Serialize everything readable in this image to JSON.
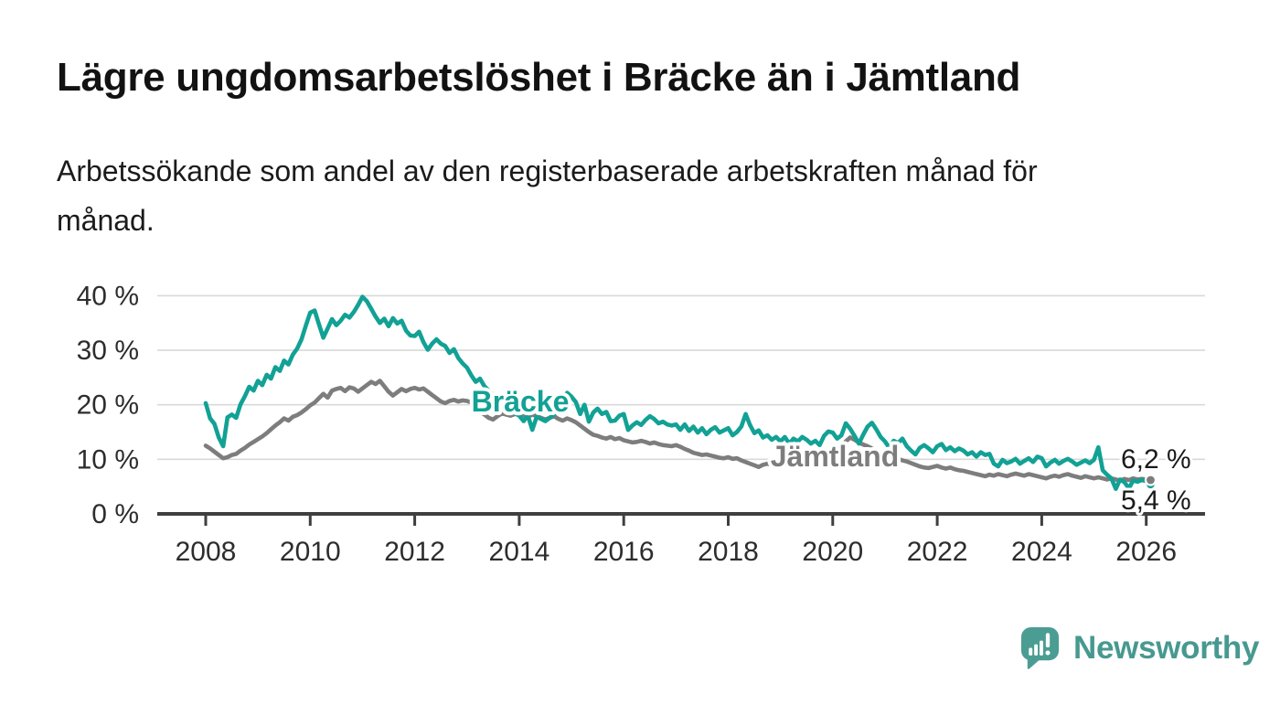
{
  "title": "Lägre ungdomsarbetslöshet i Bräcke än i Jämtland",
  "subtitle_line1": "Arbetssökande som andel av den registerbaserade arbetskraften månad för",
  "subtitle_line2": "månad.",
  "branding": {
    "name": "Newsworthy",
    "icon": "speech-bubble-with-bar-chart",
    "color": "#47998f"
  },
  "chart_data": {
    "type": "line",
    "x_start": "2008-01",
    "x_step": "1 month",
    "x_end": "2026-02",
    "grid": "horizontal",
    "legend": "inline-labels",
    "ylim": [
      0,
      43
    ],
    "x_ticks": [
      {
        "year": 2008,
        "label": "2008"
      },
      {
        "year": 2010,
        "label": "2010"
      },
      {
        "year": 2012,
        "label": "2012"
      },
      {
        "year": 2014,
        "label": "2014"
      },
      {
        "year": 2016,
        "label": "2016"
      },
      {
        "year": 2018,
        "label": "2018"
      },
      {
        "year": 2020,
        "label": "2020"
      },
      {
        "year": 2022,
        "label": "2022"
      },
      {
        "year": 2024,
        "label": "2024"
      },
      {
        "year": 2026,
        "label": "2026"
      }
    ],
    "y_ticks": [
      {
        "value": 0,
        "label": "0 %"
      },
      {
        "value": 10,
        "label": "10 %"
      },
      {
        "value": 20,
        "label": "20 %"
      },
      {
        "value": 30,
        "label": "30 %"
      },
      {
        "value": 40,
        "label": "40 %"
      }
    ],
    "series": [
      {
        "name": "Jämtland",
        "color": "#7d7d7d",
        "end_label": "6,2 %",
        "final_value": 6.2,
        "values": [
          12.5,
          12.0,
          11.4,
          10.8,
          10.2,
          10.4,
          10.8,
          11.0,
          11.6,
          12.1,
          12.7,
          13.2,
          13.7,
          14.2,
          14.8,
          15.5,
          16.2,
          16.8,
          17.5,
          17.1,
          17.8,
          18.1,
          18.6,
          19.2,
          19.9,
          20.4,
          21.2,
          22.0,
          21.3,
          22.6,
          22.9,
          23.1,
          22.5,
          23.2,
          23.0,
          22.4,
          23.0,
          23.6,
          24.2,
          23.8,
          24.4,
          23.4,
          22.4,
          21.7,
          22.3,
          22.9,
          22.5,
          22.9,
          23.1,
          22.8,
          23.0,
          22.4,
          21.8,
          21.2,
          20.6,
          20.3,
          20.7,
          20.9,
          20.6,
          20.8,
          20.7,
          20.4,
          19.6,
          18.8,
          18.2,
          17.6,
          17.3,
          17.9,
          18.4,
          18.2,
          18.0,
          18.3,
          18.5,
          18.1,
          17.8,
          18.2,
          17.9,
          17.6,
          17.3,
          17.6,
          17.9,
          17.4,
          17.1,
          17.5,
          17.2,
          16.8,
          16.2,
          15.6,
          15.0,
          14.5,
          14.3,
          14.0,
          13.8,
          14.1,
          13.7,
          13.9,
          13.5,
          13.3,
          13.1,
          13.2,
          13.4,
          13.2,
          12.9,
          13.1,
          12.8,
          12.6,
          12.5,
          12.4,
          12.6,
          12.3,
          11.9,
          11.6,
          11.2,
          11.0,
          10.8,
          10.9,
          10.7,
          10.5,
          10.3,
          10.2,
          10.4,
          10.1,
          10.2,
          9.8,
          9.5,
          9.2,
          8.9,
          8.6,
          9.0,
          9.2,
          9.0,
          9.3,
          9.5,
          9.2,
          9.0,
          9.3,
          9.1,
          9.0,
          9.2,
          9.1,
          9.4,
          9.7,
          10.0,
          10.4,
          10.9,
          11.4,
          12.2,
          13.3,
          14.0,
          13.6,
          13.1,
          12.7,
          12.4,
          12.0,
          11.6,
          11.3,
          11.0,
          10.7,
          10.4,
          10.1,
          9.8,
          9.6,
          9.3,
          9.0,
          8.7,
          8.5,
          8.4,
          8.6,
          8.8,
          8.5,
          8.3,
          8.5,
          8.2,
          8.0,
          7.9,
          7.7,
          7.5,
          7.3,
          7.1,
          6.9,
          7.2,
          7.0,
          7.3,
          7.1,
          6.9,
          7.2,
          7.4,
          7.2,
          7.0,
          7.3,
          7.1,
          6.9,
          6.7,
          6.5,
          6.8,
          7.0,
          6.8,
          7.1,
          7.3,
          7.0,
          6.8,
          6.6,
          6.9,
          6.7,
          6.5,
          6.7,
          6.5,
          6.3,
          6.5,
          6.3,
          6.1,
          6.4,
          6.2,
          6.5,
          6.3,
          6.4,
          6.3,
          6.2
        ]
      },
      {
        "name": "Bräcke",
        "color": "#12a195",
        "end_label": "5,4 %",
        "final_value": 5.4,
        "values": [
          20.3,
          17.5,
          16.5,
          14.0,
          12.4,
          17.7,
          18.2,
          17.6,
          20.1,
          21.6,
          23.3,
          22.6,
          24.4,
          23.6,
          25.5,
          24.8,
          26.9,
          26.2,
          28.1,
          27.4,
          29.2,
          30.3,
          32.0,
          34.5,
          36.9,
          37.3,
          34.8,
          32.3,
          34.0,
          35.7,
          34.6,
          35.4,
          36.5,
          36.0,
          37.0,
          38.3,
          39.8,
          39.0,
          37.6,
          36.2,
          35.0,
          35.8,
          34.4,
          35.9,
          34.9,
          35.4,
          33.6,
          32.7,
          32.6,
          33.4,
          31.5,
          30.1,
          31.2,
          32.0,
          31.2,
          30.8,
          29.5,
          30.2,
          28.6,
          27.6,
          26.8,
          25.4,
          24.2,
          24.8,
          23.4,
          22.6,
          21.8,
          21.0,
          20.2,
          19.5,
          18.8,
          18.4,
          18.0,
          17.0,
          18.0,
          15.4,
          17.8,
          17.4,
          17.0,
          17.6,
          18.3,
          19.2,
          21.0,
          22.2,
          21.5,
          20.5,
          18.3,
          20.0,
          16.9,
          18.6,
          19.3,
          18.3,
          18.7,
          17.0,
          17.1,
          18.0,
          18.3,
          15.4,
          16.2,
          16.8,
          16.3,
          17.2,
          17.9,
          17.4,
          16.6,
          16.9,
          16.4,
          16.2,
          16.4,
          15.4,
          16.4,
          15.2,
          16.0,
          14.9,
          15.7,
          14.6,
          15.4,
          15.9,
          14.9,
          15.3,
          15.7,
          14.4,
          15.0,
          16.0,
          18.3,
          16.3,
          14.8,
          15.3,
          14.0,
          14.4,
          13.6,
          14.1,
          13.3,
          14.1,
          12.9,
          13.8,
          13.3,
          14.1,
          13.6,
          12.9,
          13.4,
          12.6,
          14.3,
          15.1,
          14.9,
          13.8,
          14.4,
          16.6,
          15.6,
          14.3,
          12.9,
          14.5,
          16.0,
          16.7,
          15.5,
          14.1,
          13.3,
          12.1,
          13.4,
          13.0,
          13.8,
          12.4,
          11.6,
          10.9,
          12.1,
          12.6,
          12.0,
          11.3,
          12.4,
          12.8,
          11.7,
          12.2,
          11.5,
          12.0,
          11.6,
          10.9,
          11.3,
          10.5,
          11.3,
          10.8,
          11.0,
          9.2,
          8.7,
          9.9,
          9.3,
          9.6,
          10.1,
          9.2,
          9.7,
          10.2,
          9.5,
          10.5,
          10.2,
          8.7,
          9.4,
          9.9,
          9.2,
          9.7,
          10.1,
          9.6,
          9.0,
          9.4,
          9.8,
          9.3,
          9.9,
          12.2,
          8.0,
          7.2,
          6.5,
          4.6,
          6.3,
          5.8,
          4.7,
          6.1,
          5.9,
          6.2,
          6.0,
          5.4
        ]
      }
    ]
  }
}
